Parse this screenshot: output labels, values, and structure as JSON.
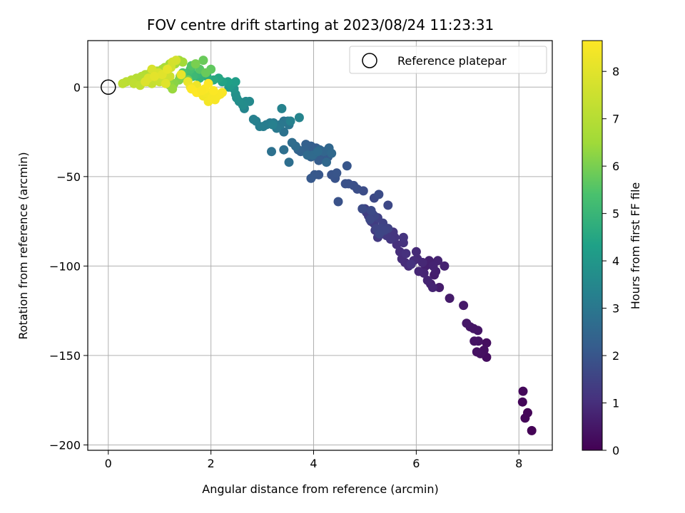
{
  "chart_data": {
    "type": "scatter",
    "title": "FOV centre drift starting at 2023/08/24 11:23:31",
    "xlabel": "Angular distance from reference (arcmin)",
    "ylabel": "Rotation from reference (arcmin)",
    "xlim": [
      -0.4,
      8.65
    ],
    "ylim": [
      -203,
      26
    ],
    "xticks": [
      "0",
      "2",
      "4",
      "6",
      "8"
    ],
    "yticks": [
      "0",
      "−50",
      "−100",
      "−150",
      "−200"
    ],
    "grid": true,
    "legend": {
      "position": "top-right",
      "entries": [
        {
          "label": "Reference platepar"
        }
      ]
    },
    "reference_point": {
      "x": 0,
      "y": 0
    },
    "colorbar": {
      "label": "Hours from first FF file",
      "range": [
        0,
        8.65
      ],
      "ticks": [
        "0",
        "1",
        "2",
        "3",
        "4",
        "5",
        "6",
        "7",
        "8"
      ],
      "colormap": "viridis"
    },
    "series": [
      {
        "points": [
          [
            8.25,
            -192,
            0.05
          ],
          [
            8.17,
            -182,
            0.08
          ],
          [
            8.12,
            -185,
            0.1
          ],
          [
            8.07,
            -176,
            0.12
          ],
          [
            8.08,
            -170,
            0.15
          ],
          [
            7.37,
            -151,
            0.25
          ],
          [
            7.37,
            -143,
            0.28
          ],
          [
            7.32,
            -147,
            0.3
          ],
          [
            7.25,
            -149,
            0.32
          ],
          [
            7.18,
            -148,
            0.35
          ],
          [
            7.21,
            -142,
            0.37
          ],
          [
            7.13,
            -142,
            0.4
          ],
          [
            7.2,
            -136,
            0.43
          ],
          [
            7.12,
            -135,
            0.45
          ],
          [
            7.05,
            -134,
            0.47
          ],
          [
            6.98,
            -132,
            0.5
          ],
          [
            6.92,
            -122,
            0.53
          ],
          [
            6.65,
            -118,
            0.57
          ],
          [
            6.45,
            -112,
            0.6
          ],
          [
            6.35,
            -105,
            0.62
          ],
          [
            6.28,
            -110,
            0.64
          ],
          [
            6.38,
            -103,
            0.66
          ],
          [
            6.18,
            -100,
            0.68
          ],
          [
            6.25,
            -97,
            0.7
          ],
          [
            6.55,
            -100,
            0.72
          ],
          [
            6.42,
            -97,
            0.74
          ],
          [
            6.33,
            -100,
            0.76
          ],
          [
            6.32,
            -112,
            0.78
          ],
          [
            6.22,
            -108,
            0.8
          ],
          [
            6.15,
            -104,
            0.82
          ],
          [
            6.05,
            -103,
            0.84
          ],
          [
            6.12,
            -98,
            0.86
          ],
          [
            6.02,
            -96,
            0.88
          ],
          [
            6.0,
            -92,
            0.9
          ],
          [
            5.95,
            -97,
            0.92
          ],
          [
            5.85,
            -100,
            0.94
          ],
          [
            5.78,
            -98,
            0.96
          ],
          [
            5.72,
            -96,
            0.98
          ],
          [
            5.68,
            -92,
            1.0
          ],
          [
            5.62,
            -88,
            1.03
          ],
          [
            5.8,
            -93,
            1.06
          ],
          [
            5.9,
            -99,
            1.08
          ],
          [
            5.75,
            -87,
            1.1
          ],
          [
            5.75,
            -84,
            1.12
          ],
          [
            5.58,
            -84,
            1.15
          ],
          [
            5.55,
            -81,
            1.18
          ],
          [
            5.5,
            -85,
            1.2
          ],
          [
            5.42,
            -83,
            1.23
          ],
          [
            5.32,
            -82,
            1.25
          ],
          [
            5.25,
            -84,
            1.28
          ],
          [
            5.2,
            -80,
            1.3
          ],
          [
            5.17,
            -76,
            1.33
          ],
          [
            5.12,
            -75,
            1.35
          ],
          [
            5.07,
            -72,
            1.38
          ],
          [
            5.03,
            -70,
            1.4
          ],
          [
            5.0,
            -68,
            1.43
          ],
          [
            5.15,
            -71,
            1.45
          ],
          [
            5.25,
            -73,
            1.48
          ],
          [
            5.35,
            -76,
            1.5
          ],
          [
            5.45,
            -79,
            1.52
          ],
          [
            5.22,
            -79,
            1.54
          ],
          [
            5.32,
            -79,
            1.56
          ],
          [
            5.38,
            -80,
            1.58
          ],
          [
            5.28,
            -82,
            1.6
          ],
          [
            5.18,
            -72,
            1.62
          ],
          [
            5.1,
            -74,
            1.64
          ],
          [
            5.45,
            -66,
            1.66
          ],
          [
            5.18,
            -62,
            1.68
          ],
          [
            5.12,
            -69,
            1.7
          ],
          [
            4.95,
            -68,
            1.73
          ],
          [
            5.27,
            -60,
            1.75
          ],
          [
            4.97,
            -58,
            1.78
          ],
          [
            4.85,
            -57,
            1.8
          ],
          [
            4.78,
            -55,
            1.83
          ],
          [
            4.68,
            -54,
            1.85
          ],
          [
            4.62,
            -54,
            1.88
          ],
          [
            4.48,
            -64,
            1.9
          ],
          [
            4.42,
            -51,
            1.93
          ],
          [
            4.35,
            -49,
            1.96
          ],
          [
            4.45,
            -48,
            1.98
          ],
          [
            4.65,
            -44,
            2.0
          ],
          [
            4.1,
            -49,
            2.03
          ],
          [
            4.02,
            -49,
            2.05
          ],
          [
            3.95,
            -51,
            2.08
          ],
          [
            4.2,
            -40,
            2.1
          ],
          [
            4.28,
            -39,
            2.13
          ],
          [
            4.15,
            -37,
            2.15
          ],
          [
            4.1,
            -41,
            2.18
          ],
          [
            4.05,
            -34,
            2.2
          ],
          [
            3.95,
            -33,
            2.23
          ],
          [
            3.9,
            -36,
            2.26
          ],
          [
            3.85,
            -32,
            2.28
          ],
          [
            4.0,
            -38,
            2.3
          ],
          [
            3.95,
            -39,
            2.33
          ],
          [
            3.82,
            -35,
            2.36
          ],
          [
            3.75,
            -36,
            2.38
          ],
          [
            3.7,
            -35,
            2.4
          ],
          [
            4.12,
            -35,
            2.43
          ],
          [
            4.2,
            -36,
            2.46
          ],
          [
            4.3,
            -34,
            2.49
          ],
          [
            4.25,
            -42,
            2.52
          ],
          [
            4.35,
            -37,
            2.55
          ],
          [
            3.98,
            -38,
            2.58
          ],
          [
            3.88,
            -38,
            2.61
          ],
          [
            4.08,
            -36,
            2.64
          ],
          [
            3.65,
            -33,
            2.67
          ],
          [
            3.58,
            -31,
            2.7
          ],
          [
            3.52,
            -42,
            2.73
          ],
          [
            3.42,
            -35,
            2.76
          ],
          [
            3.18,
            -36,
            2.8
          ],
          [
            3.42,
            -25,
            2.85
          ],
          [
            3.42,
            -19,
            2.9
          ],
          [
            3.52,
            -21,
            2.93
          ],
          [
            3.5,
            -19,
            2.96
          ],
          [
            3.35,
            -21,
            3.0
          ],
          [
            3.28,
            -23,
            3.05
          ],
          [
            3.22,
            -20,
            3.08
          ],
          [
            3.15,
            -20,
            3.11
          ],
          [
            3.08,
            -21,
            3.14
          ],
          [
            3.02,
            -22,
            3.17
          ],
          [
            2.95,
            -22,
            3.2
          ],
          [
            2.88,
            -19,
            3.23
          ],
          [
            2.83,
            -18,
            3.26
          ],
          [
            3.2,
            -21,
            3.29
          ],
          [
            3.55,
            -19,
            3.32
          ],
          [
            3.38,
            -12,
            3.35
          ],
          [
            3.72,
            -17,
            3.4
          ],
          [
            2.65,
            -12,
            3.45
          ],
          [
            2.75,
            -8,
            3.55
          ],
          [
            2.68,
            -8,
            3.6
          ],
          [
            2.62,
            -10,
            3.65
          ],
          [
            2.55,
            -8,
            3.7
          ],
          [
            2.5,
            -6,
            3.75
          ],
          [
            2.48,
            -4,
            3.8
          ],
          [
            2.45,
            -1,
            3.9
          ],
          [
            2.35,
            0,
            4.0
          ],
          [
            2.38,
            1,
            4.1
          ],
          [
            2.48,
            3,
            4.2
          ],
          [
            2.33,
            3,
            4.3
          ],
          [
            2.22,
            3,
            4.4
          ],
          [
            2.15,
            5,
            4.5
          ],
          [
            2.05,
            4,
            4.6
          ],
          [
            1.92,
            6,
            4.7
          ],
          [
            1.85,
            7,
            4.8
          ],
          [
            1.78,
            5,
            4.9
          ],
          [
            1.72,
            7,
            5.0
          ],
          [
            1.65,
            6,
            5.1
          ],
          [
            1.55,
            8,
            5.2
          ],
          [
            1.6,
            10,
            5.3
          ],
          [
            1.45,
            8,
            5.4
          ],
          [
            1.62,
            12,
            5.5
          ],
          [
            1.78,
            10,
            5.6
          ],
          [
            2.0,
            10,
            5.7
          ],
          [
            1.9,
            8,
            5.8
          ],
          [
            1.55,
            4,
            5.9
          ],
          [
            1.4,
            6,
            6.0
          ],
          [
            1.38,
            4,
            6.1
          ],
          [
            1.28,
            2,
            6.2
          ],
          [
            1.2,
            1,
            6.3
          ],
          [
            1.25,
            -1,
            6.4
          ],
          [
            1.85,
            15,
            5.8
          ],
          [
            1.7,
            13,
            6.0
          ],
          [
            1.38,
            15,
            6.5
          ],
          [
            1.45,
            14,
            6.55
          ],
          [
            1.3,
            13,
            6.6
          ],
          [
            1.2,
            13,
            6.65
          ],
          [
            1.1,
            11,
            6.7
          ],
          [
            1.05,
            10,
            6.75
          ],
          [
            0.95,
            9,
            6.8
          ],
          [
            0.82,
            8,
            6.85
          ],
          [
            0.72,
            7,
            6.9
          ],
          [
            0.65,
            6,
            6.95
          ],
          [
            0.55,
            5,
            7.0
          ],
          [
            0.45,
            4,
            7.05
          ],
          [
            0.35,
            3,
            7.1
          ],
          [
            0.28,
            2,
            7.15
          ],
          [
            0.5,
            2,
            7.2
          ],
          [
            0.62,
            1,
            7.25
          ],
          [
            0.75,
            3,
            7.3
          ],
          [
            0.85,
            2,
            7.35
          ],
          [
            0.92,
            4,
            7.4
          ],
          [
            1.0,
            3,
            7.45
          ],
          [
            1.08,
            5,
            7.5
          ],
          [
            1.2,
            6,
            7.55
          ],
          [
            1.22,
            11,
            7.6
          ],
          [
            1.25,
            14,
            7.65
          ],
          [
            1.32,
            15,
            7.7
          ],
          [
            0.98,
            8,
            7.75
          ],
          [
            0.85,
            10,
            7.8
          ],
          [
            0.78,
            5,
            7.85
          ],
          [
            0.72,
            3,
            7.9
          ],
          [
            1.12,
            2,
            7.95
          ],
          [
            1.05,
            7,
            8.0
          ],
          [
            0.9,
            6,
            8.05
          ],
          [
            1.15,
            10,
            8.1
          ],
          [
            1.42,
            7,
            8.15
          ],
          [
            1.55,
            3,
            8.2
          ],
          [
            1.6,
            0,
            8.25
          ],
          [
            1.7,
            -2,
            8.3
          ],
          [
            1.72,
            1,
            8.33
          ],
          [
            1.78,
            -3,
            8.36
          ],
          [
            1.85,
            -5,
            8.39
          ],
          [
            1.9,
            -3,
            8.42
          ],
          [
            1.95,
            -8,
            8.45
          ],
          [
            2.02,
            -6,
            8.48
          ],
          [
            2.08,
            -7,
            8.5
          ],
          [
            2.12,
            -5,
            8.52
          ],
          [
            2.18,
            -4,
            8.54
          ],
          [
            2.22,
            -3,
            8.56
          ],
          [
            1.88,
            -1,
            8.58
          ],
          [
            1.62,
            -1,
            8.6
          ],
          [
            1.95,
            2,
            8.62
          ],
          [
            1.72,
            -3,
            8.64
          ],
          [
            2.05,
            -2,
            8.6
          ],
          [
            1.82,
            -2,
            8.55
          ]
        ]
      }
    ]
  }
}
